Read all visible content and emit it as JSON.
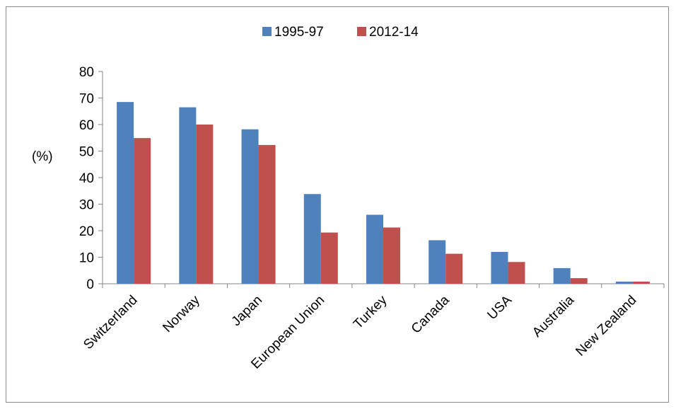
{
  "chart_data": {
    "type": "bar",
    "categories": [
      "Switzerland",
      "Norway",
      "Japan",
      "European Union",
      "Turkey",
      "Canada",
      "USA",
      "Australia",
      "New Zealand"
    ],
    "series": [
      {
        "name": "1995-97",
        "color": "#4f81bd",
        "values": [
          68.5,
          66.5,
          58.2,
          33.8,
          26.0,
          16.4,
          12.0,
          5.9,
          0.8
        ]
      },
      {
        "name": "2012-14",
        "color": "#c0504d",
        "values": [
          54.9,
          60.0,
          52.3,
          19.3,
          21.2,
          11.3,
          8.2,
          2.1,
          0.8
        ]
      }
    ],
    "title": "",
    "xlabel": "",
    "ylabel": "(%)",
    "ylim": [
      0,
      80
    ],
    "yticks": [
      0,
      10,
      20,
      30,
      40,
      50,
      60,
      70,
      80
    ],
    "grid": false,
    "legend_position": "top-center"
  }
}
